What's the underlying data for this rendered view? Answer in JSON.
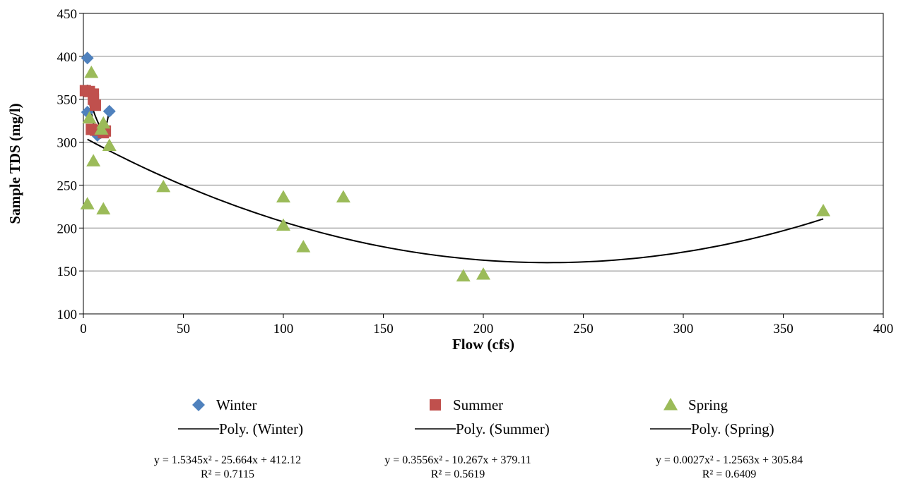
{
  "chart_data": {
    "type": "scatter",
    "xlabel": "Flow (cfs)",
    "ylabel": "Sample TDS (mg/l)",
    "xlim": [
      0,
      400
    ],
    "ylim": [
      100,
      450
    ],
    "xticks": [
      0,
      50,
      100,
      150,
      200,
      250,
      300,
      350,
      400
    ],
    "yticks": [
      100,
      150,
      200,
      250,
      300,
      350,
      400,
      450
    ],
    "grid": "horizontal",
    "legend_position": "bottom",
    "series": [
      {
        "name": "Winter",
        "marker": "diamond",
        "color": "#4F81BD",
        "points": [
          [
            2,
            398
          ],
          [
            2,
            335
          ],
          [
            7,
            308
          ],
          [
            13,
            336
          ]
        ],
        "trend": {
          "name": "Poly. (Winter)",
          "coefficients": [
            1.5345,
            -25.664,
            412.12
          ],
          "range": [
            2,
            13
          ],
          "equation": "y = 1.5345x² - 25.664x + 412.12",
          "r2": "R² = 0.7115"
        }
      },
      {
        "name": "Summer",
        "marker": "square",
        "color": "#C0504D",
        "points": [
          [
            1,
            360
          ],
          [
            3,
            359
          ],
          [
            5,
            356
          ],
          [
            5,
            350
          ],
          [
            6,
            343
          ],
          [
            4,
            315
          ],
          [
            6,
            314
          ],
          [
            10,
            311
          ],
          [
            11,
            313
          ]
        ],
        "trend": {
          "name": "Poly. (Summer)",
          "coefficients": [
            0.3556,
            -10.267,
            379.11
          ],
          "range": [
            2,
            11
          ],
          "equation": "y = 0.3556x² - 10.267x + 379.11",
          "r2": "R² = 0.5619"
        }
      },
      {
        "name": "Spring",
        "marker": "triangle",
        "color": "#9BBB59",
        "points": [
          [
            4,
            381
          ],
          [
            3,
            328
          ],
          [
            10,
            322
          ],
          [
            9,
            315
          ],
          [
            13,
            296
          ],
          [
            5,
            278
          ],
          [
            2,
            228
          ],
          [
            10,
            222
          ],
          [
            40,
            248
          ],
          [
            100,
            236
          ],
          [
            100,
            203
          ],
          [
            110,
            178
          ],
          [
            130,
            236
          ],
          [
            190,
            144
          ],
          [
            200,
            146
          ],
          [
            370,
            220
          ]
        ],
        "trend": {
          "name": "Poly. (Spring)",
          "coefficients": [
            0.0027,
            -1.2563,
            305.84
          ],
          "range": [
            2,
            370
          ],
          "equation": "y = 0.0027x² - 1.2563x + 305.84",
          "r2": "R² = 0.6409"
        }
      }
    ]
  }
}
